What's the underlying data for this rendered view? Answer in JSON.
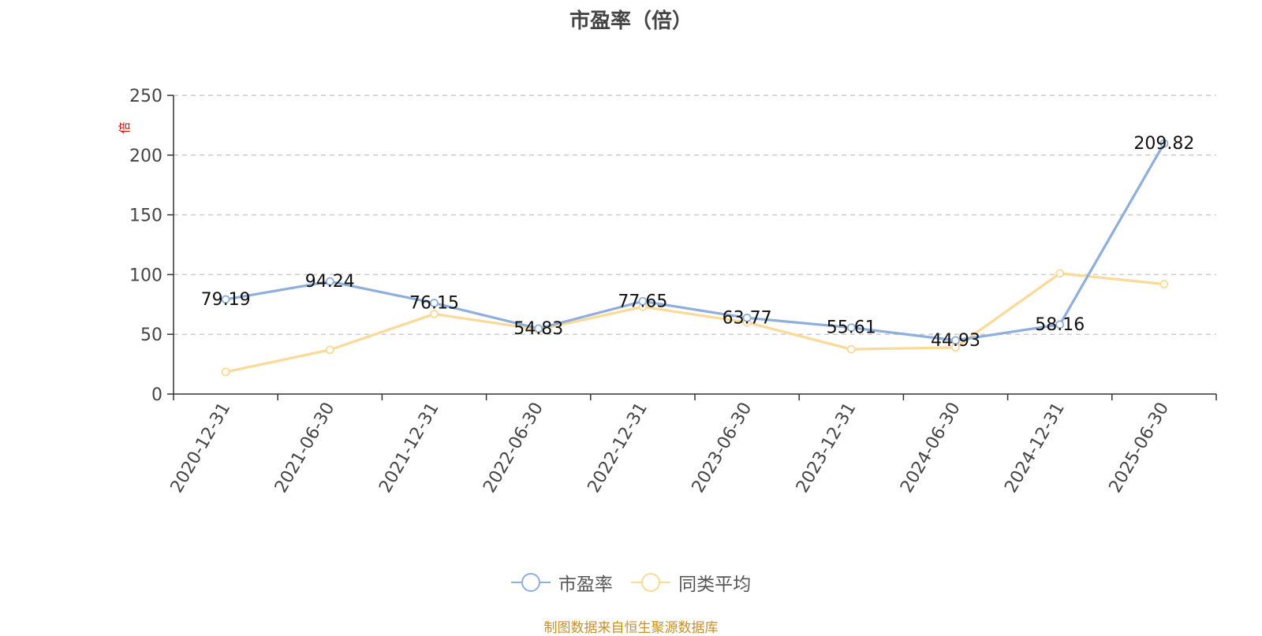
{
  "chart_data": {
    "type": "line",
    "title": "市盈率（倍）",
    "ylabel": "倍",
    "ylim": [
      0,
      250
    ],
    "yticks": [
      0,
      50,
      100,
      150,
      200,
      250
    ],
    "grid": true,
    "legend_position": "bottom",
    "categories": [
      "2020-12-31",
      "2021-06-30",
      "2021-12-31",
      "2022-06-30",
      "2022-12-31",
      "2023-06-30",
      "2023-12-31",
      "2024-06-30",
      "2024-12-31",
      "2025-06-30"
    ],
    "series": [
      {
        "name": "市盈率",
        "color": "#8eaedb",
        "values": [
          79.19,
          94.24,
          76.15,
          54.83,
          77.65,
          63.77,
          55.61,
          44.93,
          58.16,
          209.82
        ],
        "labels": [
          "79.19",
          "94.24",
          "76.15",
          "54.83",
          "77.65",
          "63.77",
          "55.61",
          "44.93",
          "58.16",
          "209.82"
        ]
      },
      {
        "name": "同类平均",
        "color": "#fbd996",
        "values": [
          18.5,
          37,
          67,
          54,
          73,
          60,
          37.5,
          39,
          101,
          92
        ]
      }
    ]
  },
  "footer": "制图数据来自恒生聚源数据库"
}
